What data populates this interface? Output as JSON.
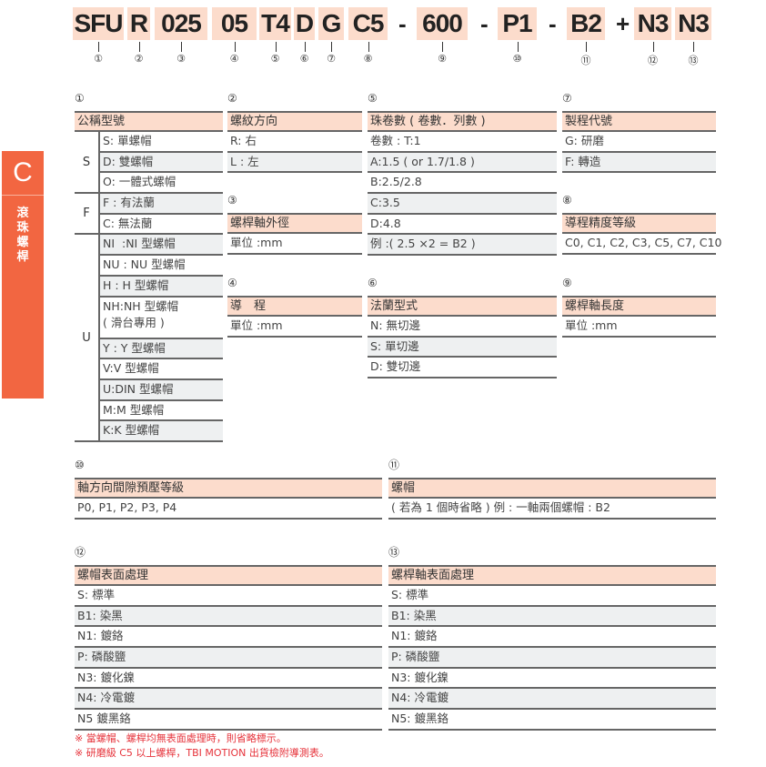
{
  "codes": [
    {
      "text": "SFU",
      "num": "①"
    },
    {
      "text": "R",
      "num": "②"
    },
    {
      "text": "025",
      "num": "③"
    },
    {
      "text": "05",
      "num": "④"
    },
    {
      "text": "T4",
      "num": "⑤"
    },
    {
      "text": "D",
      "num": "⑥"
    },
    {
      "text": "G",
      "num": "⑦"
    },
    {
      "text": "C5",
      "num": "⑧"
    },
    {
      "text": "600",
      "num": "⑨"
    },
    {
      "text": "P1",
      "num": "⑩"
    },
    {
      "text": "B2",
      "num": "⑪"
    },
    {
      "text": "N3",
      "num": "⑫"
    },
    {
      "text": "N3",
      "num": "⑬"
    }
  ],
  "separators": [
    "-",
    "-",
    "-",
    "+"
  ],
  "sidebar": {
    "letter": "C",
    "title": "滾珠螺桿",
    "color": "#f26641"
  },
  "colors": {
    "header_bg": "#fcdccc",
    "row_alt": "#eef0f1",
    "note": "#e6323a"
  },
  "sections": {
    "s1": {
      "num": "①",
      "title": "公稱型號",
      "groups": [
        {
          "label": "S",
          "rows": [
            "S: 單螺帽",
            "D: 雙螺帽",
            "O: 一體式螺帽"
          ]
        },
        {
          "label": "F",
          "rows": [
            "F : 有法蘭",
            "C: 無法蘭"
          ]
        },
        {
          "label": "U",
          "rows": [
            "NI  :NI 型螺帽",
            "NU : NU 型螺帽",
            "H : H 型螺帽",
            "NH:NH 型螺帽\n( 滑台專用 )",
            "Y : Y 型螺帽",
            "V:V 型螺帽",
            "U:DIN 型螺帽",
            "M:M 型螺帽",
            "K:K 型螺帽"
          ]
        }
      ]
    },
    "s2": {
      "num": "②",
      "title": "螺紋方向",
      "rows": [
        "R: 右",
        "L : 左"
      ]
    },
    "s3": {
      "num": "③",
      "title": "螺桿軸外徑",
      "rows": [
        "單位 :mm"
      ]
    },
    "s4": {
      "num": "④",
      "title": "導　程",
      "rows": [
        "單位 :mm"
      ]
    },
    "s5": {
      "num": "⑤",
      "title": "珠卷數 ( 卷數．列數 )",
      "rows": [
        "卷數 : T:1",
        "A:1.5 ( or 1.7/1.8 )",
        "B:2.5/2.8",
        "C:3.5",
        "D:4.8",
        "例 :( 2.5 ×2 = B2 )"
      ]
    },
    "s6": {
      "num": "⑥",
      "title": "法蘭型式",
      "rows": [
        "N: 無切邊",
        "S: 單切邊",
        "D: 雙切邊"
      ]
    },
    "s7": {
      "num": "⑦",
      "title": "製程代號",
      "rows": [
        "G: 研磨",
        "F: 轉造"
      ]
    },
    "s8": {
      "num": "⑧",
      "title": "導程精度等級",
      "rows": [
        "C0, C1, C2, C3, C5, C7, C10"
      ]
    },
    "s9": {
      "num": "⑨",
      "title": "螺桿軸長度",
      "rows": [
        "單位 :mm"
      ]
    },
    "s10": {
      "num": "⑩",
      "title": "軸方向間隙預壓等級",
      "rows": [
        "P0, P1, P2, P3, P4"
      ]
    },
    "s11": {
      "num": "⑪",
      "title": "螺帽",
      "rows": [
        "( 若為 1 個時省略 ) 例 : 一軸兩個螺帽 : B2"
      ]
    },
    "s12": {
      "num": "⑫",
      "title": "螺帽表面處理",
      "rows": [
        "S: 標準",
        "B1: 染黑",
        "N1: 鍍鉻",
        "P: 磷酸鹽",
        "N3: 鍍化鎳",
        "N4: 冷電鍍",
        "N5 鍍黑鉻"
      ]
    },
    "s13": {
      "num": "⑬",
      "title": "螺桿軸表面處理",
      "rows": [
        "S: 標準",
        "B1: 染黑",
        "N1: 鍍鉻",
        "P: 磷酸鹽",
        "N3: 鍍化鎳",
        "N4: 冷電鍍",
        "N5: 鍍黑鉻"
      ]
    }
  },
  "notes": [
    "※ 當螺帽、螺桿均無表面處理時，則省略標示。",
    "※ 研磨級 C5 以上螺桿，TBI MOTION 出貨檢附導測表。"
  ]
}
